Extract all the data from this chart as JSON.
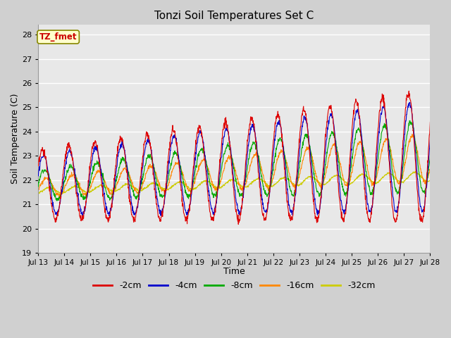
{
  "title": "Tonzi Soil Temperatures Set C",
  "xlabel": "Time",
  "ylabel": "Soil Temperature (C)",
  "ylim": [
    19.0,
    28.4
  ],
  "yticks": [
    19.0,
    20.0,
    21.0,
    22.0,
    23.0,
    24.0,
    25.0,
    26.0,
    27.0,
    28.0
  ],
  "xtick_labels": [
    "Jul 13",
    "Jul 14",
    "Jul 15",
    "Jul 16",
    "Jul 17",
    "Jul 18",
    "Jul 19",
    "Jul 20",
    "Jul 21",
    "Jul 22",
    "Jul 23",
    "Jul 24",
    "Jul 25",
    "Jul 26",
    "Jul 27",
    "Jul 28"
  ],
  "legend_labels": [
    "-2cm",
    "-4cm",
    "-8cm",
    "-16cm",
    "-32cm"
  ],
  "legend_colors": [
    "#dd0000",
    "#0000cc",
    "#00aa00",
    "#ff8800",
    "#cccc00"
  ],
  "annotation_text": "TZ_fmet",
  "annotation_color": "#cc0000",
  "annotation_bg": "#ffffcc",
  "annotation_border": "#888800",
  "fig_bg": "#d0d0d0",
  "plot_bg": "#e8e8e8",
  "n_days": 15,
  "samples_per_day": 96
}
